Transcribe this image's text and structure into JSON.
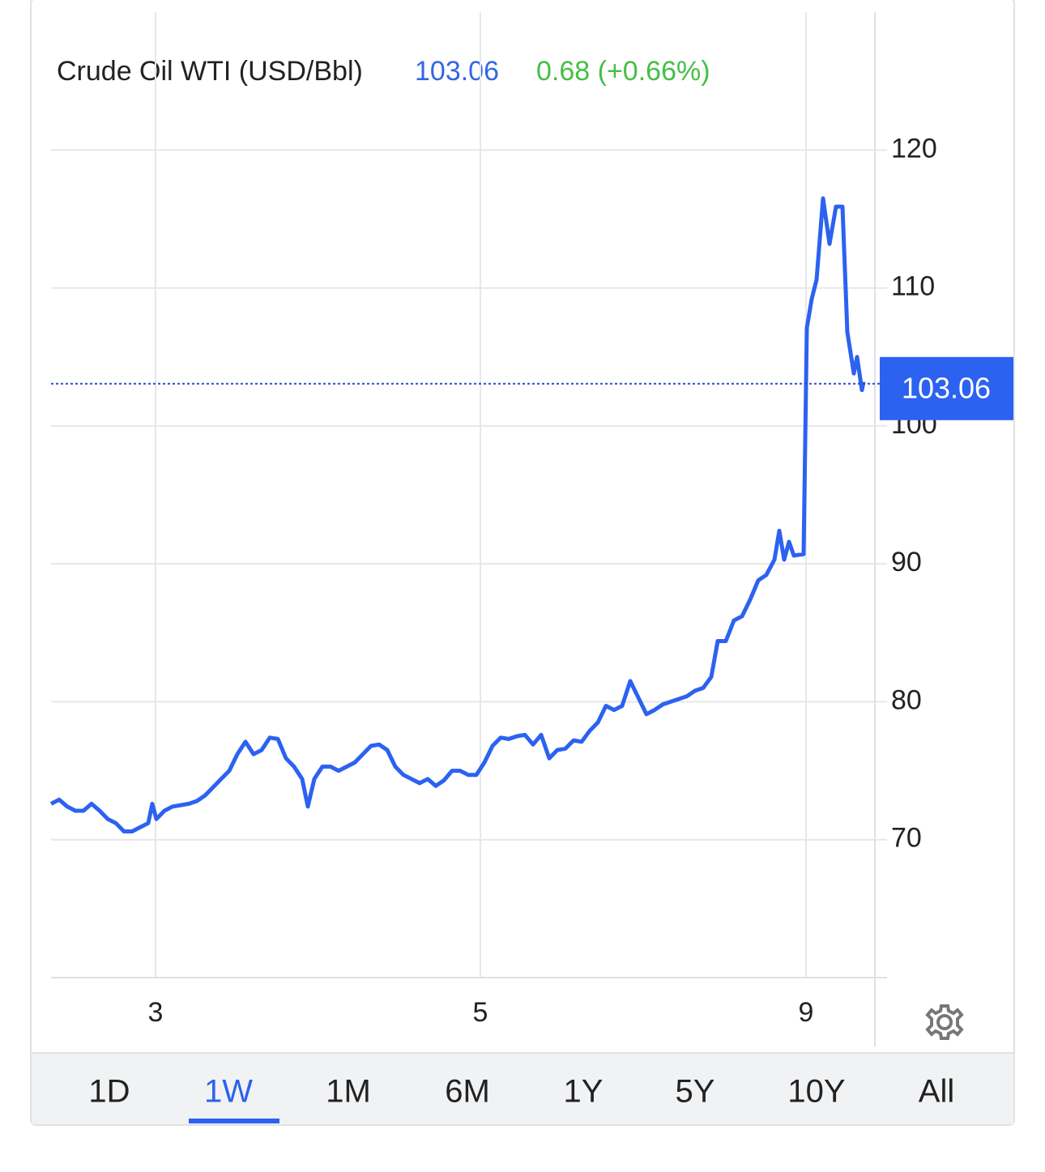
{
  "chart_data": {
    "type": "line",
    "title": "Crude Oil WTI (USD/Bbl)",
    "last_price": 103.06,
    "change_label": "0.68 (+0.66%)",
    "color": "#2c62f0",
    "x": [
      0,
      1,
      2,
      3,
      4,
      5,
      6,
      7,
      8,
      9,
      10,
      11,
      12,
      12.5,
      13,
      14,
      15,
      16,
      17,
      18,
      19,
      20,
      21,
      22,
      23,
      24,
      25,
      26,
      27,
      28,
      29,
      30,
      31,
      31.7,
      32.5,
      33.5,
      34.5,
      35.5,
      36.5,
      37.5,
      38.5,
      39.5,
      40.5,
      41.5,
      42.5,
      43.5,
      44.5,
      45.5,
      46.5,
      47.5,
      48.5,
      49.5,
      50.5,
      51.5,
      52.5,
      53.5,
      54.5,
      55.5,
      56.5,
      57.5,
      58.5,
      59.5,
      60.5,
      61.5,
      62.5,
      63.5,
      64.5,
      65.5,
      66.5,
      67.5,
      68.5,
      69.5,
      70.5,
      71.5,
      72.5,
      73.5,
      74.5,
      75.5,
      76.5,
      77.5,
      78.5,
      79.5,
      80.5,
      81.5,
      82.3,
      83.3,
      84.3,
      85.3,
      86.3,
      87.3,
      88.3,
      89.3,
      89.9,
      90.5,
      91.1,
      91.7,
      92.9,
      93.3,
      93.9,
      94.5,
      95.3,
      96.1,
      96.9,
      97.7,
      98.3,
      99.1,
      99.5,
      100.1,
      100.3
    ],
    "values": [
      72.6,
      72.9,
      72.4,
      72.1,
      72.1,
      72.6,
      72.1,
      71.5,
      71.2,
      70.6,
      70.6,
      70.9,
      71.2,
      72.6,
      71.5,
      72.1,
      72.4,
      72.5,
      72.6,
      72.8,
      73.2,
      73.8,
      74.4,
      75.0,
      76.2,
      77.1,
      76.2,
      76.5,
      77.4,
      77.3,
      75.9,
      75.3,
      74.4,
      72.4,
      74.4,
      75.3,
      75.3,
      75.0,
      75.3,
      75.6,
      76.2,
      76.8,
      76.9,
      76.5,
      75.3,
      74.7,
      74.4,
      74.1,
      74.4,
      73.9,
      74.3,
      75.0,
      75.0,
      74.7,
      74.7,
      75.6,
      76.8,
      77.4,
      77.3,
      77.5,
      77.6,
      76.9,
      77.6,
      75.9,
      76.5,
      76.6,
      77.2,
      77.1,
      77.9,
      78.5,
      79.7,
      79.4,
      79.7,
      81.5,
      80.3,
      79.1,
      79.4,
      79.8,
      80.0,
      80.2,
      80.4,
      80.8,
      81.0,
      81.8,
      84.4,
      84.4,
      85.9,
      86.2,
      87.4,
      88.8,
      89.2,
      90.3,
      92.4,
      90.3,
      91.6,
      90.6,
      90.7,
      107.1,
      109.2,
      110.6,
      116.5,
      113.2,
      115.9,
      115.9,
      106.8,
      103.8,
      105.0,
      102.6,
      103.2
    ],
    "xlim": [
      0,
      101.7
    ],
    "xticks": [
      {
        "value": 12.9,
        "label": "3"
      },
      {
        "value": 53,
        "label": "5"
      },
      {
        "value": 93.2,
        "label": "9"
      }
    ],
    "ylim": [
      60,
      130
    ],
    "yticks": [
      70,
      80,
      90,
      100,
      110,
      120
    ],
    "grid": true
  },
  "ranges": [
    "1D",
    "1W",
    "1M",
    "6M",
    "1Y",
    "5Y",
    "10Y",
    "All"
  ],
  "active_range": 1
}
